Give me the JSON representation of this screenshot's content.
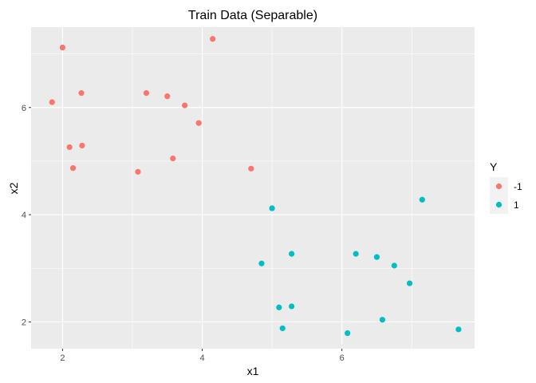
{
  "chart_data": {
    "type": "scatter",
    "title": "Train Data (Separable)",
    "xlabel": "x1",
    "ylabel": "x2",
    "xlim": [
      1.55,
      7.9
    ],
    "ylim": [
      1.5,
      7.5
    ],
    "x_ticks": [
      2,
      4,
      6
    ],
    "y_ticks": [
      2,
      4,
      6
    ],
    "x_tick_labels": [
      "2",
      "4",
      "6"
    ],
    "y_tick_labels": [
      "2",
      "4",
      "6"
    ],
    "grid": true,
    "legend": {
      "title": "Y",
      "position": "right"
    },
    "colors": {
      "panel": "#EBEBEB",
      "grid": "#FFFFFF"
    },
    "series": [
      {
        "name": "-1",
        "color": "#F8766D",
        "points": [
          [
            1.85,
            6.1
          ],
          [
            2.0,
            7.12
          ],
          [
            2.1,
            5.26
          ],
          [
            2.15,
            4.87
          ],
          [
            2.27,
            6.27
          ],
          [
            2.28,
            5.29
          ],
          [
            3.08,
            4.8
          ],
          [
            3.2,
            6.27
          ],
          [
            3.5,
            6.21
          ],
          [
            3.58,
            5.05
          ],
          [
            3.75,
            6.04
          ],
          [
            3.95,
            5.71
          ],
          [
            4.15,
            7.28
          ],
          [
            4.7,
            4.86
          ]
        ]
      },
      {
        "name": "1",
        "color": "#00BFC4",
        "points": [
          [
            4.85,
            3.09
          ],
          [
            5.0,
            4.12
          ],
          [
            5.1,
            2.27
          ],
          [
            5.15,
            1.88
          ],
          [
            5.28,
            3.27
          ],
          [
            5.28,
            2.29
          ],
          [
            6.08,
            1.79
          ],
          [
            6.2,
            3.27
          ],
          [
            6.5,
            3.21
          ],
          [
            6.58,
            2.04
          ],
          [
            6.75,
            3.05
          ],
          [
            6.97,
            2.72
          ],
          [
            7.15,
            4.28
          ],
          [
            7.67,
            1.86
          ]
        ]
      }
    ]
  }
}
